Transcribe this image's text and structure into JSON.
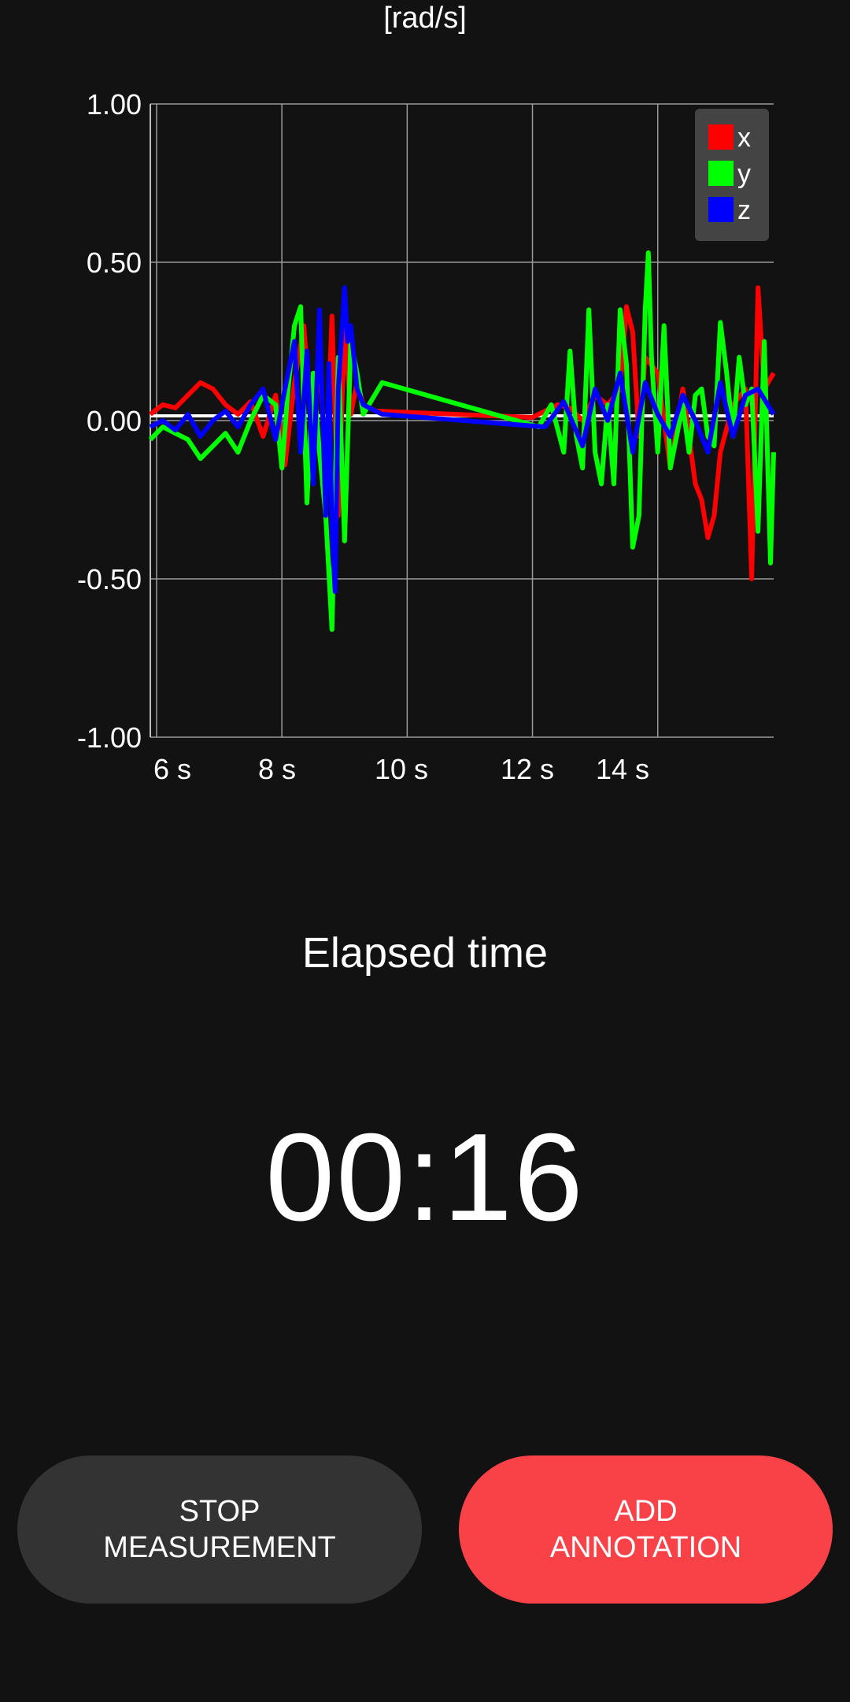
{
  "header": {
    "unit_label": "[rad/s]"
  },
  "chart_data": {
    "type": "line",
    "title": "",
    "xlabel": "",
    "ylabel": "[rad/s]",
    "xlim": [
      5.9,
      15.85
    ],
    "ylim": [
      -1.0,
      1.0
    ],
    "y_ticks": [
      "1.00",
      "0.50",
      "0.00",
      "-0.50",
      "-1.00"
    ],
    "x_ticks": [
      "6 s",
      "8 s",
      "10 s",
      "12 s",
      "14 s"
    ],
    "grid": true,
    "legend_position": "top-right",
    "baseline_color": "#ffffff",
    "series": [
      {
        "name": "x",
        "color": "#ff0000",
        "x": [
          5.9,
          6.1,
          6.3,
          6.5,
          6.7,
          6.9,
          7.1,
          7.3,
          7.5,
          7.7,
          7.9,
          8.05,
          8.2,
          8.35,
          8.5,
          8.6,
          8.7,
          8.8,
          8.9,
          9.0,
          9.1,
          9.2,
          9.3,
          9.5,
          12.0,
          12.2,
          12.4,
          12.6,
          12.8,
          13.0,
          13.2,
          13.4,
          13.5,
          13.6,
          13.7,
          13.8,
          14.0,
          14.2,
          14.4,
          14.5,
          14.6,
          14.7,
          14.8,
          14.9,
          15.0,
          15.2,
          15.4,
          15.5,
          15.6,
          15.7,
          15.85
        ],
        "y": [
          0.02,
          0.05,
          0.04,
          0.08,
          0.12,
          0.1,
          0.05,
          0.02,
          0.06,
          -0.05,
          0.08,
          -0.14,
          0.12,
          0.3,
          -0.1,
          0.25,
          -0.2,
          0.33,
          -0.3,
          0.3,
          0.02,
          0.12,
          0.05,
          0.03,
          0.01,
          0.03,
          0.05,
          0.04,
          0.0,
          0.08,
          0.05,
          0.1,
          0.36,
          0.28,
          -0.05,
          0.2,
          0.15,
          -0.15,
          0.1,
          -0.05,
          -0.2,
          -0.25,
          -0.37,
          -0.3,
          -0.1,
          0.05,
          0.1,
          -0.5,
          0.42,
          0.1,
          0.15
        ]
      },
      {
        "name": "y",
        "color": "#00ff00",
        "x": [
          5.9,
          6.1,
          6.3,
          6.5,
          6.7,
          6.9,
          7.1,
          7.3,
          7.5,
          7.7,
          7.9,
          8.0,
          8.1,
          8.2,
          8.3,
          8.4,
          8.5,
          8.6,
          8.7,
          8.8,
          8.9,
          9.0,
          9.1,
          9.2,
          9.3,
          9.6,
          12.1,
          12.3,
          12.5,
          12.6,
          12.7,
          12.8,
          12.9,
          13.0,
          13.1,
          13.2,
          13.3,
          13.4,
          13.5,
          13.6,
          13.7,
          13.8,
          13.85,
          13.9,
          14.0,
          14.1,
          14.2,
          14.4,
          14.5,
          14.6,
          14.7,
          14.8,
          14.9,
          15.0,
          15.1,
          15.2,
          15.3,
          15.4,
          15.5,
          15.6,
          15.7,
          15.8,
          15.85
        ],
        "y": [
          -0.06,
          -0.02,
          -0.04,
          -0.06,
          -0.12,
          -0.08,
          -0.04,
          -0.1,
          0.0,
          0.08,
          0.05,
          -0.15,
          0.1,
          0.3,
          0.36,
          -0.26,
          0.15,
          -0.1,
          -0.3,
          -0.66,
          0.2,
          -0.38,
          0.25,
          0.15,
          0.02,
          0.12,
          -0.02,
          0.05,
          -0.1,
          0.22,
          -0.05,
          -0.15,
          0.35,
          -0.1,
          -0.2,
          0.05,
          -0.2,
          0.35,
          0.18,
          -0.4,
          -0.3,
          0.35,
          0.53,
          0.2,
          -0.1,
          0.3,
          -0.15,
          0.05,
          -0.1,
          0.08,
          0.1,
          -0.05,
          -0.08,
          0.31,
          0.15,
          -0.05,
          0.2,
          0.05,
          0.1,
          -0.35,
          0.25,
          -0.45,
          -0.1
        ]
      },
      {
        "name": "z",
        "color": "#0000ff",
        "x": [
          5.9,
          6.1,
          6.3,
          6.5,
          6.7,
          6.9,
          7.1,
          7.3,
          7.5,
          7.7,
          7.9,
          8.05,
          8.2,
          8.3,
          8.4,
          8.5,
          8.6,
          8.7,
          8.75,
          8.8,
          8.85,
          8.9,
          9.0,
          9.05,
          9.1,
          9.2,
          9.3,
          9.6,
          12.2,
          12.5,
          12.8,
          13.0,
          13.2,
          13.4,
          13.6,
          13.8,
          14.0,
          14.2,
          14.4,
          14.6,
          14.8,
          15.0,
          15.2,
          15.4,
          15.6,
          15.85
        ],
        "y": [
          -0.02,
          0.0,
          -0.03,
          0.02,
          -0.05,
          0.0,
          0.03,
          -0.02,
          0.05,
          0.1,
          -0.06,
          0.1,
          0.25,
          -0.1,
          0.22,
          -0.2,
          0.35,
          -0.3,
          0.18,
          -0.35,
          -0.54,
          0.1,
          0.42,
          0.25,
          0.3,
          0.1,
          0.05,
          0.02,
          -0.02,
          0.06,
          -0.08,
          0.1,
          0.0,
          0.15,
          -0.1,
          0.12,
          0.02,
          -0.05,
          0.08,
          0.0,
          -0.1,
          0.12,
          -0.05,
          0.08,
          0.1,
          0.02
        ]
      }
    ]
  },
  "elapsed": {
    "label": "Elapsed time",
    "value": "00:16"
  },
  "buttons": {
    "stop": "STOP\nMEASUREMENT",
    "annotate": "ADD\nANNOTATION"
  },
  "colors": {
    "background": "#121212",
    "stop_button": "#333333",
    "annotate_button": "#f84247",
    "legend_bg": "#444444"
  },
  "icons": {
    "legend_swatch": "square-swatch"
  }
}
